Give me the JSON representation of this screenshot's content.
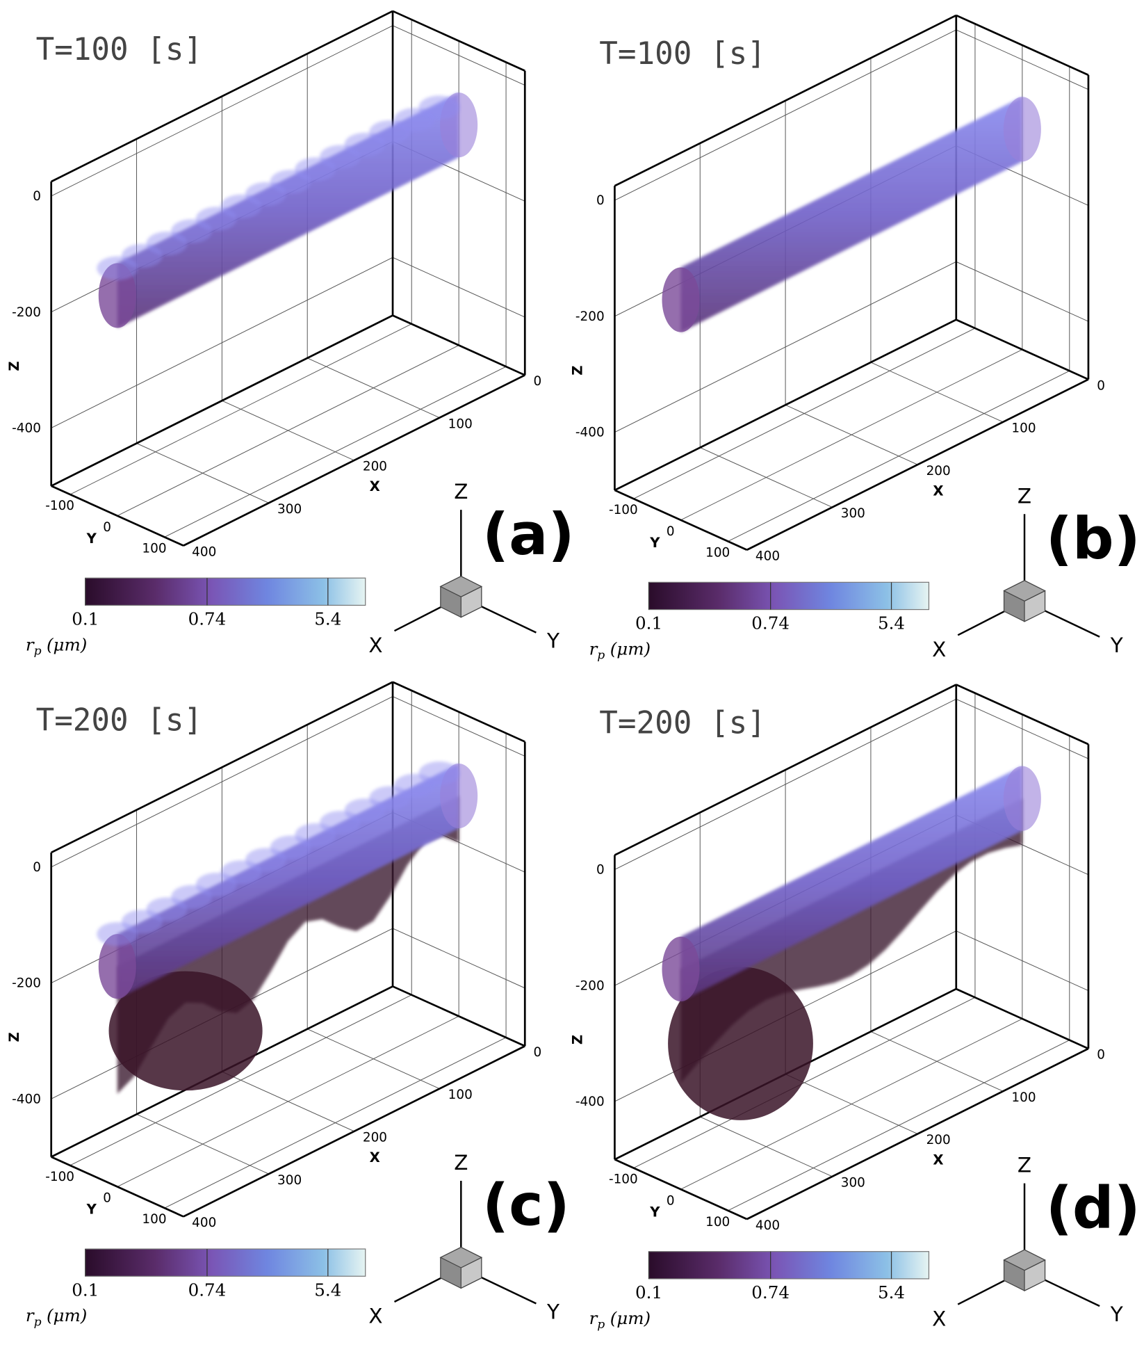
{
  "panels": [
    {
      "time": "T=100 [s]",
      "label": "(a)",
      "xlim": [
        0,
        400
      ],
      "ylim": [
        -140,
        140
      ],
      "zlim": [
        -500,
        25
      ],
      "xticks": [
        0,
        100,
        200,
        300,
        400
      ],
      "yticks": [
        -100,
        0,
        100
      ],
      "zticks": [
        0,
        -200,
        -400
      ],
      "axis_titles": {
        "x": "X",
        "y": "Y",
        "z": "Z"
      },
      "triad": {
        "x": "X",
        "y": "Y",
        "z": "Z"
      },
      "colorbar": {
        "log": true,
        "clim": [
          0.1,
          10
        ],
        "ticks": [
          0.1,
          0.74,
          5.4
        ],
        "symbol": "r",
        "subscript": "p",
        "unit": "(μm)"
      }
    },
    {
      "time": "T=100 [s]",
      "label": "(b)",
      "xlim": [
        0,
        400
      ],
      "ylim": [
        -140,
        140
      ],
      "zlim": [
        -500,
        25
      ],
      "xticks": [
        0,
        100,
        200,
        300,
        400
      ],
      "yticks": [
        -100,
        0,
        100
      ],
      "zticks": [
        0,
        -200,
        -400
      ],
      "axis_titles": {
        "x": "X",
        "y": "Y",
        "z": "Z"
      },
      "triad": {
        "x": "X",
        "y": "Y",
        "z": "Z"
      },
      "colorbar": {
        "log": true,
        "clim": [
          0.1,
          10
        ],
        "ticks": [
          0.1,
          0.74,
          5.4
        ],
        "symbol": "r",
        "subscript": "p",
        "unit": "(μm)"
      }
    },
    {
      "time": "T=200 [s]",
      "label": "(c)",
      "xlim": [
        0,
        400
      ],
      "ylim": [
        -140,
        140
      ],
      "zlim": [
        -500,
        25
      ],
      "xticks": [
        0,
        100,
        200,
        300,
        400
      ],
      "yticks": [
        -100,
        0,
        100
      ],
      "zticks": [
        0,
        -200,
        -400
      ],
      "axis_titles": {
        "x": "X",
        "y": "Y",
        "z": "Z"
      },
      "triad": {
        "x": "X",
        "y": "Y",
        "z": "Z"
      },
      "colorbar": {
        "log": true,
        "clim": [
          0.1,
          10
        ],
        "ticks": [
          0.1,
          0.74,
          5.4
        ],
        "symbol": "r",
        "subscript": "p",
        "unit": "(μm)"
      }
    },
    {
      "time": "T=200 [s]",
      "label": "(d)",
      "xlim": [
        0,
        400
      ],
      "ylim": [
        -140,
        140
      ],
      "zlim": [
        -500,
        25
      ],
      "xticks": [
        0,
        100,
        200,
        300,
        400
      ],
      "yticks": [
        -100,
        0,
        100
      ],
      "zticks": [
        0,
        -200,
        -400
      ],
      "axis_titles": {
        "x": "X",
        "y": "Y",
        "z": "Z"
      },
      "triad": {
        "x": "X",
        "y": "Y",
        "z": "Z"
      },
      "colorbar": {
        "log": true,
        "clim": [
          0.1,
          10
        ],
        "ticks": [
          0.1,
          0.74,
          5.4
        ],
        "symbol": "r",
        "subscript": "p",
        "unit": "(μm)"
      }
    }
  ]
}
